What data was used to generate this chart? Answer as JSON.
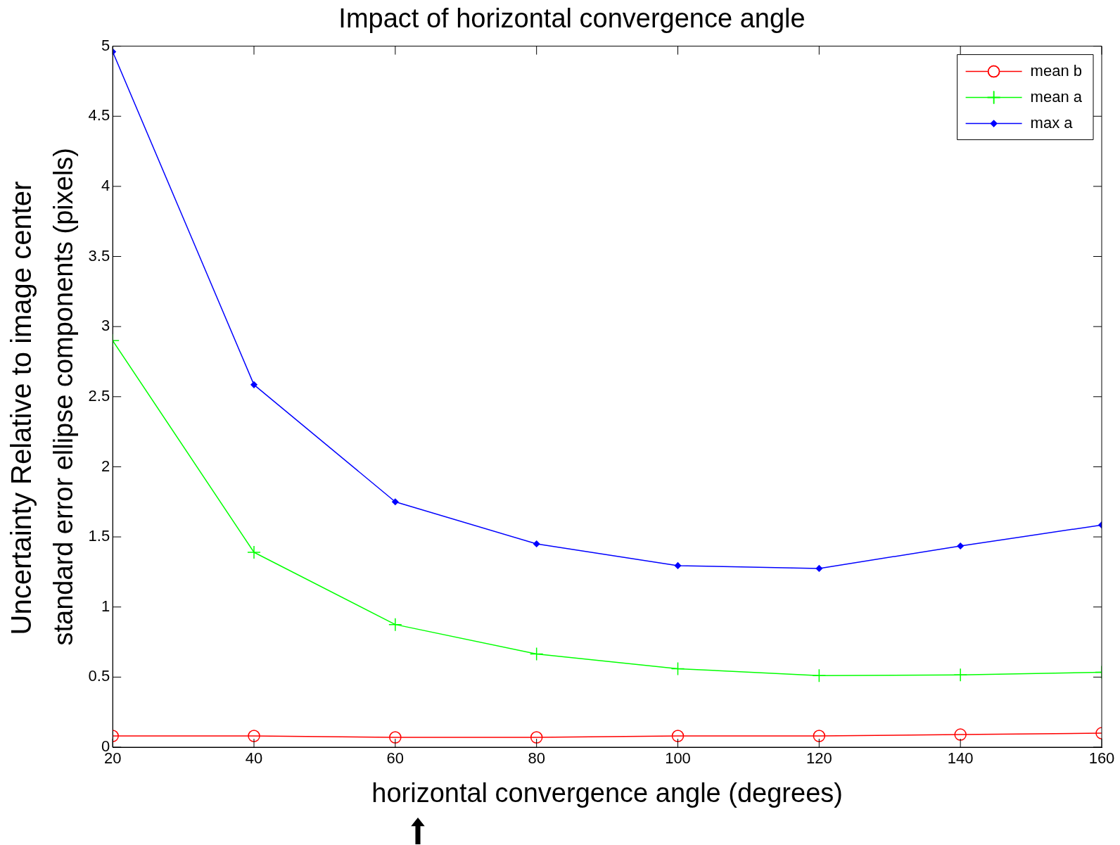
{
  "chart_data": {
    "type": "line",
    "title": "Impact of horizontal convergence angle",
    "xlabel": "horizontal convergence angle (degrees)",
    "ylabel": "standard error ellipse components (pixels)",
    "annotations": [
      "Uncertainty Relative to image center"
    ],
    "x": [
      20,
      40,
      60,
      80,
      100,
      120,
      140,
      160
    ],
    "xlim": [
      20,
      160
    ],
    "xticks": [
      20,
      40,
      60,
      80,
      100,
      120,
      140,
      160
    ],
    "ylim": [
      0,
      5
    ],
    "yticks": [
      0,
      0.5,
      1,
      1.5,
      2,
      2.5,
      3,
      3.5,
      4,
      4.5,
      5
    ],
    "grid": false,
    "legend": "top right",
    "line_style": "solid",
    "series": [
      {
        "name": "mean b",
        "color": "#ff0000",
        "marker": "circle",
        "values": [
          0.08,
          0.08,
          0.07,
          0.07,
          0.08,
          0.08,
          0.09,
          0.1
        ]
      },
      {
        "name": "mean a",
        "color": "#00ff00",
        "marker": "cross",
        "values": [
          2.9,
          1.39,
          0.875,
          0.665,
          0.56,
          0.51,
          0.515,
          0.535
        ]
      },
      {
        "name": "max a",
        "color": "#0000ff",
        "marker": "diamond",
        "values": [
          4.96,
          2.585,
          1.75,
          1.45,
          1.295,
          1.275,
          1.435,
          1.585
        ]
      }
    ]
  }
}
